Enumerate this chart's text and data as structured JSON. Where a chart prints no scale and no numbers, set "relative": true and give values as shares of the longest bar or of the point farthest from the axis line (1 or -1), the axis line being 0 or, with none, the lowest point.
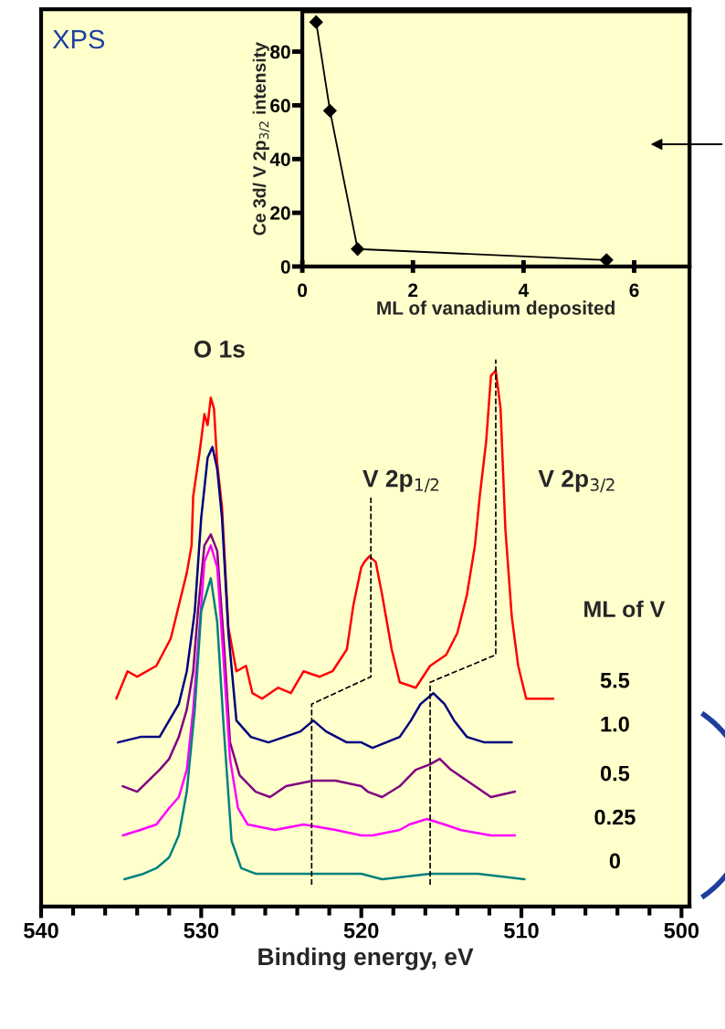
{
  "chart_data": [
    {
      "type": "line",
      "title": "XPS",
      "xlabel": "Binding energy, eV",
      "legend_title": "ML of V",
      "relative": true,
      "tick_labels": "x",
      "annotations": [
        "O 1s",
        "V 2p$_{1/2}$",
        "V 2p$_{3/2}$"
      ],
      "xlim": [
        540,
        499.5
      ],
      "xticks": [
        540,
        {
          "value": 538,
          "label": null
        },
        {
          "value": 536,
          "label": null
        },
        {
          "value": 534,
          "label": null
        },
        {
          "value": 532,
          "label": null
        },
        530,
        {
          "value": 528,
          "label": null
        },
        {
          "value": 526,
          "label": null
        },
        {
          "value": 524,
          "label": null
        },
        {
          "value": 522,
          "label": null
        },
        520,
        {
          "value": 518,
          "label": null
        },
        {
          "value": 516,
          "label": null
        },
        {
          "value": 514,
          "label": null
        },
        {
          "value": 512,
          "label": null
        },
        510,
        {
          "value": 508,
          "label": null
        },
        {
          "value": 506,
          "label": null
        },
        {
          "value": 504,
          "label": null
        },
        {
          "value": 502,
          "label": null
        },
        500
      ],
      "series": [
        {
          "name": "5.5",
          "color": "#ff0000",
          "x": [
            535.3,
            534.6,
            534.0,
            532.8,
            531.9,
            531.4,
            530.9,
            530.6,
            530.5,
            530.1,
            529.8,
            529.6,
            529.4,
            529.2,
            529.0,
            528.7,
            528.3,
            527.8,
            527.2,
            526.8,
            526.2,
            525.2,
            524.4,
            523.6,
            522.6,
            521.8,
            520.9,
            520.5,
            520.0,
            519.8,
            519.5,
            519.1,
            518.7,
            518.1,
            517.6,
            516.6,
            515.7,
            514.7,
            514.0,
            513.4,
            512.9,
            512.6,
            512.2,
            511.9,
            511.6,
            511.3,
            511.0,
            510.6,
            510.2,
            509.7,
            508.8,
            508.0
          ],
          "values": [
            0.38,
            0.43,
            0.42,
            0.44,
            0.49,
            0.55,
            0.61,
            0.66,
            0.75,
            0.83,
            0.9,
            0.88,
            0.93,
            0.91,
            0.81,
            0.73,
            0.51,
            0.43,
            0.44,
            0.39,
            0.38,
            0.4,
            0.39,
            0.43,
            0.42,
            0.43,
            0.47,
            0.55,
            0.62,
            0.63,
            0.64,
            0.63,
            0.57,
            0.47,
            0.41,
            0.4,
            0.44,
            0.46,
            0.5,
            0.57,
            0.66,
            0.75,
            0.85,
            0.97,
            0.98,
            0.91,
            0.69,
            0.53,
            0.44,
            0.38,
            0.38,
            0.38
          ]
        },
        {
          "name": "1.0",
          "color": "#000080",
          "x": [
            535.2,
            533.8,
            532.6,
            532.0,
            531.4,
            530.9,
            530.4,
            530.0,
            529.6,
            529.3,
            529.0,
            528.7,
            528.3,
            527.8,
            526.9,
            525.8,
            524.8,
            523.8,
            523.0,
            522.2,
            520.9,
            520.0,
            519.3,
            517.6,
            516.9,
            516.3,
            515.5,
            514.8,
            514.2,
            513.4,
            512.3,
            510.6
          ],
          "values": [
            0.3,
            0.31,
            0.31,
            0.34,
            0.37,
            0.43,
            0.54,
            0.71,
            0.82,
            0.84,
            0.8,
            0.71,
            0.5,
            0.34,
            0.31,
            0.3,
            0.31,
            0.32,
            0.34,
            0.32,
            0.3,
            0.3,
            0.29,
            0.31,
            0.34,
            0.37,
            0.39,
            0.37,
            0.34,
            0.31,
            0.3,
            0.3
          ]
        },
        {
          "name": "0.5",
          "color": "#800080",
          "x": [
            534.9,
            534.0,
            533.3,
            532.6,
            532.0,
            531.4,
            530.9,
            530.5,
            530.2,
            529.8,
            529.4,
            529.0,
            528.6,
            528.2,
            527.6,
            526.6,
            525.7,
            524.7,
            523.0,
            521.6,
            520.0,
            519.6,
            518.7,
            517.6,
            516.6,
            515.7,
            515.1,
            514.4,
            513.4,
            511.9,
            510.4
          ],
          "values": [
            0.22,
            0.21,
            0.23,
            0.25,
            0.27,
            0.31,
            0.36,
            0.43,
            0.54,
            0.66,
            0.68,
            0.65,
            0.49,
            0.3,
            0.24,
            0.21,
            0.2,
            0.22,
            0.23,
            0.23,
            0.22,
            0.21,
            0.2,
            0.22,
            0.25,
            0.26,
            0.27,
            0.25,
            0.23,
            0.2,
            0.21
          ]
        },
        {
          "name": "0.25",
          "color": "#ff00ff",
          "x": [
            534.9,
            533.8,
            532.8,
            532.0,
            531.4,
            530.9,
            530.5,
            530.1,
            529.8,
            529.4,
            529.0,
            528.6,
            528.2,
            527.7,
            527.1,
            525.4,
            523.6,
            521.6,
            520.0,
            519.3,
            517.6,
            517.0,
            515.9,
            514.8,
            513.8,
            511.9,
            510.4
          ],
          "values": [
            0.13,
            0.14,
            0.15,
            0.18,
            0.2,
            0.25,
            0.36,
            0.51,
            0.63,
            0.66,
            0.62,
            0.45,
            0.27,
            0.18,
            0.15,
            0.14,
            0.15,
            0.14,
            0.13,
            0.13,
            0.14,
            0.15,
            0.16,
            0.15,
            0.14,
            0.13,
            0.13
          ]
        },
        {
          "name": "0",
          "color": "#008080",
          "x": [
            534.8,
            533.6,
            532.8,
            532.0,
            531.4,
            530.9,
            530.4,
            530.0,
            529.4,
            529.0,
            528.6,
            528.1,
            527.5,
            526.6,
            524.7,
            522.6,
            520.0,
            518.7,
            515.7,
            512.7,
            509.8
          ],
          "values": [
            0.05,
            0.06,
            0.07,
            0.09,
            0.13,
            0.21,
            0.36,
            0.54,
            0.6,
            0.52,
            0.33,
            0.12,
            0.07,
            0.06,
            0.06,
            0.06,
            0.06,
            0.05,
            0.06,
            0.06,
            0.05
          ]
        },
        {
          "color": "#000000",
          "line_style": "dashed",
          "x": [
            523.1,
            523.1,
            519.4,
            519.4
          ],
          "values": [
            0.04,
            0.37,
            0.42,
            0.75
          ]
        },
        {
          "color": "#000000",
          "line_style": "dashed",
          "x": [
            515.7,
            515.7,
            511.6,
            511.6
          ],
          "values": [
            0.04,
            0.41,
            0.46,
            1.0
          ]
        }
      ]
    },
    {
      "type": "line",
      "marker": "diamond",
      "xlabel": "ML of vanadium deposited",
      "ylabel": "Ce 3d/ V 2p$_{3/2}$ intensity",
      "xlim": [
        0,
        7
      ],
      "xticks": [
        0,
        2,
        4,
        6
      ],
      "ylim": [
        0,
        95
      ],
      "yticks": [
        0,
        20,
        40,
        60,
        80
      ],
      "series": [
        {
          "color": "#000000",
          "x": [
            0.25,
            0.5,
            1.0,
            5.5
          ],
          "values": [
            91,
            58,
            6.5,
            2.4
          ]
        }
      ]
    }
  ]
}
